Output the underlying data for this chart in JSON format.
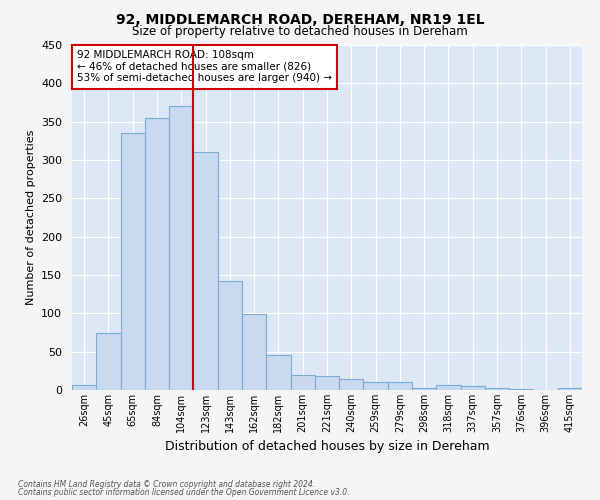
{
  "title": "92, MIDDLEMARCH ROAD, DEREHAM, NR19 1EL",
  "subtitle": "Size of property relative to detached houses in Dereham",
  "xlabel": "Distribution of detached houses by size in Dereham",
  "ylabel": "Number of detached properties",
  "bar_labels": [
    "26sqm",
    "45sqm",
    "65sqm",
    "84sqm",
    "104sqm",
    "123sqm",
    "143sqm",
    "162sqm",
    "182sqm",
    "201sqm",
    "221sqm",
    "240sqm",
    "259sqm",
    "279sqm",
    "298sqm",
    "318sqm",
    "337sqm",
    "357sqm",
    "376sqm",
    "396sqm",
    "415sqm"
  ],
  "bar_values": [
    7,
    75,
    335,
    355,
    370,
    310,
    142,
    99,
    46,
    20,
    18,
    14,
    11,
    10,
    3,
    6,
    5,
    3,
    1,
    0,
    2
  ],
  "bar_color": "#c8d9f0",
  "bar_edge_color": "#7aadd4",
  "vline_color": "#cc0000",
  "annotation_text": "92 MIDDLEMARCH ROAD: 108sqm\n← 46% of detached houses are smaller (826)\n53% of semi-detached houses are larger (940) →",
  "annotation_box_facecolor": "#ffffff",
  "annotation_box_edgecolor": "#cc0000",
  "ylim": [
    0,
    450
  ],
  "yticks": [
    0,
    50,
    100,
    150,
    200,
    250,
    300,
    350,
    400,
    450
  ],
  "background_color": "#dce8f5",
  "grid_color": "#ffffff",
  "fig_facecolor": "#f5f5f5",
  "footer_line1": "Contains HM Land Registry data © Crown copyright and database right 2024.",
  "footer_line2": "Contains public sector information licensed under the Open Government Licence v3.0."
}
